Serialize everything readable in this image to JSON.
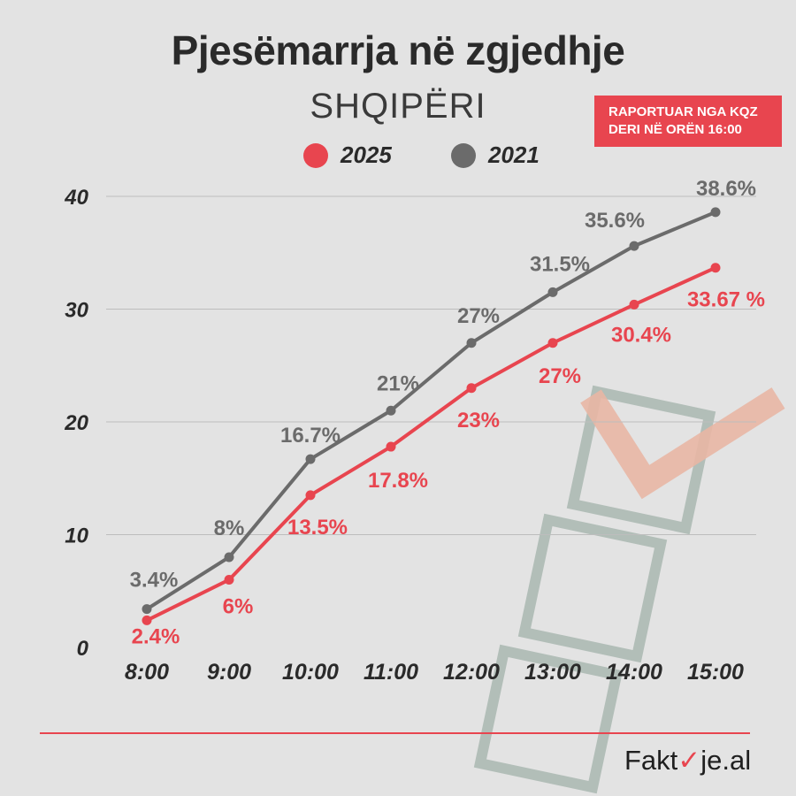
{
  "header": {
    "title": "Pjesëmarrja në zgjedhje",
    "subtitle": "SHQIPËRI"
  },
  "source_note": {
    "line1": "RAPORTUAR NGA KQZ",
    "line2": "DERI NË ORËN 16:00"
  },
  "brand": {
    "prefix": "Fakt",
    "tick": "✓",
    "suffix": "je.al"
  },
  "colors": {
    "background": "#e3e3e3",
    "series_2025": "#e8454f",
    "series_2021": "#6b6b6b",
    "gridline": "#bdbdbd",
    "ballot_box": "#a6b5ae",
    "check_mark": "#e8b6a4"
  },
  "chart_data": {
    "type": "line",
    "title": "Pjesëmarrja në zgjedhje",
    "subtitle": "SHQIPËRI",
    "xlabel": "",
    "ylabel": "",
    "categories": [
      "8:00",
      "9:00",
      "10:00",
      "11:00",
      "12:00",
      "13:00",
      "14:00",
      "15:00"
    ],
    "yticks": [
      "0",
      "10",
      "20",
      "30",
      "40"
    ],
    "ylim": [
      0,
      40
    ],
    "grid": true,
    "legend_position": "top",
    "series": [
      {
        "name": "2021",
        "color": "#6b6b6b",
        "values": [
          3.4,
          8,
          16.7,
          21,
          27,
          31.5,
          35.6,
          38.6
        ],
        "labels": [
          "3.4%",
          "8%",
          "16.7%",
          "21%",
          "27%",
          "31.5%",
          "35.6%",
          "38.6%"
        ]
      },
      {
        "name": "2025",
        "color": "#e8454f",
        "values": [
          2.4,
          6,
          13.5,
          17.8,
          23,
          27,
          30.4,
          33.67
        ],
        "labels": [
          "2.4%",
          "6%",
          "13.5%",
          "17.8%",
          "23%",
          "27%",
          "30.4%",
          "33.67 %"
        ]
      }
    ]
  }
}
